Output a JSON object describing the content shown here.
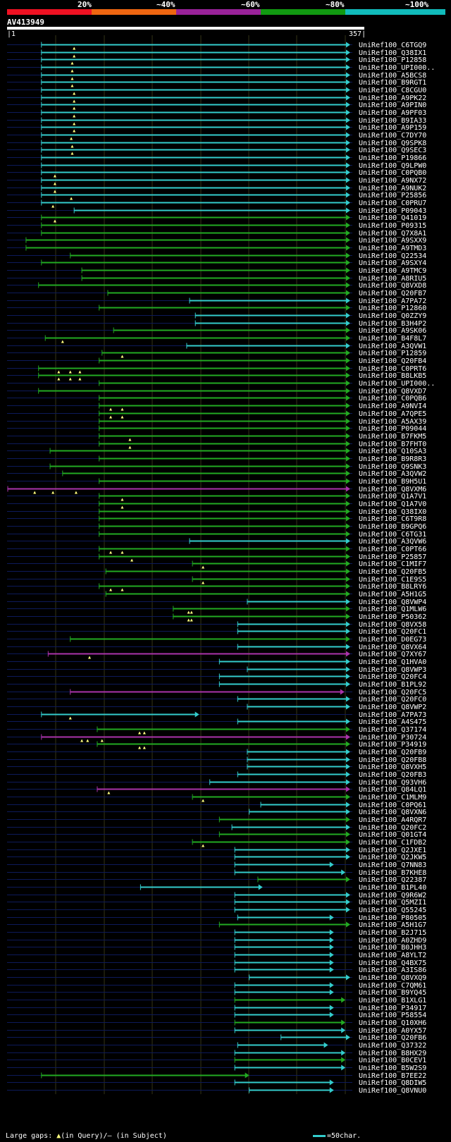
{
  "scale": {
    "labels": [
      "20%",
      "~40%",
      "~60%",
      "~80%",
      "~100%"
    ],
    "colors": [
      "#ee1122",
      "#ee6611",
      "#992299",
      "#119911",
      "#11bbbb"
    ]
  },
  "query": {
    "name": "AV413949",
    "start": "1",
    "end": "357"
  },
  "footer": {
    "gaps_label": "Large gaps:",
    "query_marker": "▲",
    "query_text": "(in Query)/",
    "subject_marker": "–",
    "subject_text": "(in Subject)",
    "legend_text": "=50char."
  },
  "chart_data": {
    "type": "alignment",
    "title": "AV413949",
    "query_length": 357,
    "x_range": [
      1,
      357
    ],
    "colors": {
      "c": "#33cccc",
      "g": "#22aa22",
      "m": "#aa33aa"
    },
    "hits": [
      {
        "label": "UniRef100_C6TGQ9",
        "s": 36,
        "e": 357,
        "c": "c",
        "m": [
          70
        ]
      },
      {
        "label": "UniRef100_Q38IX1",
        "s": 36,
        "e": 357,
        "c": "c",
        "m": [
          70
        ]
      },
      {
        "label": "UniRef100_P12858",
        "s": 36,
        "e": 357,
        "c": "c",
        "m": [
          68
        ]
      },
      {
        "label": "UniRef100_UPI000..",
        "s": 36,
        "e": 357,
        "c": "c",
        "m": [
          68
        ]
      },
      {
        "label": "UniRef100_A5BCS8",
        "s": 36,
        "e": 357,
        "c": "c",
        "m": [
          68
        ]
      },
      {
        "label": "UniRef100_B9RGT1",
        "s": 36,
        "e": 357,
        "c": "c",
        "m": [
          68
        ]
      },
      {
        "label": "UniRef100_C8CGU0",
        "s": 36,
        "e": 357,
        "c": "c",
        "m": [
          70
        ]
      },
      {
        "label": "UniRef100_A9PK22",
        "s": 36,
        "e": 357,
        "c": "c",
        "m": [
          70
        ]
      },
      {
        "label": "UniRef100_A9PIN0",
        "s": 36,
        "e": 357,
        "c": "c",
        "m": [
          70
        ]
      },
      {
        "label": "UniRef100_A9PF03",
        "s": 36,
        "e": 357,
        "c": "c",
        "m": [
          70
        ]
      },
      {
        "label": "UniRef100_B9IA33",
        "s": 36,
        "e": 357,
        "c": "c",
        "m": [
          70
        ]
      },
      {
        "label": "UniRef100_A9P159",
        "s": 36,
        "e": 357,
        "c": "c",
        "m": [
          70
        ]
      },
      {
        "label": "UniRef100_C7DY70",
        "s": 36,
        "e": 357,
        "c": "c",
        "m": [
          67
        ]
      },
      {
        "label": "UniRef100_Q9SPK8",
        "s": 36,
        "e": 357,
        "c": "c",
        "m": [
          68
        ]
      },
      {
        "label": "UniRef100_Q9SEC3",
        "s": 36,
        "e": 357,
        "c": "c",
        "m": [
          68
        ]
      },
      {
        "label": "UniRef100_P19866",
        "s": 36,
        "e": 357,
        "c": "c",
        "m": []
      },
      {
        "label": "UniRef100_Q9LPW0",
        "s": 36,
        "e": 357,
        "c": "c",
        "m": []
      },
      {
        "label": "UniRef100_C0PQB0",
        "s": 36,
        "e": 357,
        "c": "c",
        "m": [
          50
        ]
      },
      {
        "label": "UniRef100_A9NX72",
        "s": 36,
        "e": 357,
        "c": "c",
        "m": [
          50
        ]
      },
      {
        "label": "UniRef100_A9NUK2",
        "s": 36,
        "e": 357,
        "c": "c",
        "m": [
          50
        ]
      },
      {
        "label": "UniRef100_P25856",
        "s": 36,
        "e": 357,
        "c": "c",
        "m": [
          67
        ]
      },
      {
        "label": "UniRef100_C0PRU7",
        "s": 36,
        "e": 357,
        "c": "c",
        "m": [
          48
        ]
      },
      {
        "label": "UniRef100_P09043",
        "s": 70,
        "e": 357,
        "c": "c",
        "m": []
      },
      {
        "label": "UniRef100_Q41019",
        "s": 36,
        "e": 357,
        "c": "g",
        "m": [
          50
        ]
      },
      {
        "label": "UniRef100_P09315",
        "s": 36,
        "e": 357,
        "c": "g",
        "m": []
      },
      {
        "label": "UniRef100_Q7X8A1",
        "s": 36,
        "e": 357,
        "c": "g",
        "m": []
      },
      {
        "label": "UniRef100_A9SXX9",
        "s": 20,
        "e": 357,
        "c": "g",
        "m": []
      },
      {
        "label": "UniRef100_A9TMD3",
        "s": 20,
        "e": 357,
        "c": "g",
        "m": []
      },
      {
        "label": "UniRef100_Q22534",
        "s": 66,
        "e": 357,
        "c": "g",
        "m": []
      },
      {
        "label": "UniRef100_A9SXY4",
        "s": 36,
        "e": 357,
        "c": "g",
        "m": []
      },
      {
        "label": "UniRef100_A9TMC9",
        "s": 78,
        "e": 357,
        "c": "g",
        "m": []
      },
      {
        "label": "UniRef100_A8RIU5",
        "s": 78,
        "e": 357,
        "c": "g",
        "m": []
      },
      {
        "label": "UniRef100_Q8VXD8",
        "s": 33,
        "e": 357,
        "c": "g",
        "m": []
      },
      {
        "label": "UniRef100_Q20FB7",
        "s": 105,
        "e": 357,
        "c": "g",
        "m": []
      },
      {
        "label": "UniRef100_A7PA72",
        "s": 190,
        "e": 357,
        "c": "c",
        "m": []
      },
      {
        "label": "UniRef100_P12860",
        "s": 96,
        "e": 357,
        "c": "g",
        "m": []
      },
      {
        "label": "UniRef100_Q0ZZY9",
        "s": 196,
        "e": 357,
        "c": "c",
        "m": []
      },
      {
        "label": "UniRef100_B3H4P2",
        "s": 196,
        "e": 357,
        "c": "c",
        "m": []
      },
      {
        "label": "UniRef100_A9SK06",
        "s": 111,
        "e": 357,
        "c": "g",
        "m": []
      },
      {
        "label": "UniRef100_B4F8L7",
        "s": 40,
        "e": 357,
        "c": "g",
        "m": [
          58
        ]
      },
      {
        "label": "UniRef100_A3QVW1",
        "s": 187,
        "e": 357,
        "c": "c",
        "m": []
      },
      {
        "label": "UniRef100_P12859",
        "s": 99,
        "e": 357,
        "c": "g",
        "m": [
          120
        ]
      },
      {
        "label": "UniRef100_Q20FB4",
        "s": 96,
        "e": 357,
        "c": "g",
        "m": []
      },
      {
        "label": "UniRef100_C0PRT6",
        "s": 33,
        "e": 357,
        "c": "g",
        "m": [
          54,
          66,
          76
        ]
      },
      {
        "label": "UniRef100_B8LKB5",
        "s": 33,
        "e": 357,
        "c": "g",
        "m": [
          54,
          66,
          76
        ]
      },
      {
        "label": "UniRef100_UPI000..",
        "s": 96,
        "e": 357,
        "c": "g",
        "m": []
      },
      {
        "label": "UniRef100_Q8VXD7",
        "s": 33,
        "e": 357,
        "c": "g",
        "m": []
      },
      {
        "label": "UniRef100_C0PQB6",
        "s": 96,
        "e": 357,
        "c": "g",
        "m": []
      },
      {
        "label": "UniRef100_A9NVI4",
        "s": 96,
        "e": 357,
        "c": "g",
        "m": [
          108,
          120
        ]
      },
      {
        "label": "UniRef100_A7QPE5",
        "s": 96,
        "e": 357,
        "c": "g",
        "m": [
          108,
          120
        ]
      },
      {
        "label": "UniRef100_A5AX39",
        "s": 96,
        "e": 357,
        "c": "g",
        "m": []
      },
      {
        "label": "UniRef100_P09044",
        "s": 96,
        "e": 357,
        "c": "g",
        "m": []
      },
      {
        "label": "UniRef100_B7FKM5",
        "s": 96,
        "e": 357,
        "c": "g",
        "m": [
          128
        ]
      },
      {
        "label": "UniRef100_B7FHT0",
        "s": 96,
        "e": 357,
        "c": "g",
        "m": [
          128
        ]
      },
      {
        "label": "UniRef100_Q10SA3",
        "s": 45,
        "e": 357,
        "c": "g",
        "m": []
      },
      {
        "label": "UniRef100_B9R8R3",
        "s": 96,
        "e": 357,
        "c": "g",
        "m": []
      },
      {
        "label": "UniRef100_Q9SNK3",
        "s": 45,
        "e": 357,
        "c": "g",
        "m": []
      },
      {
        "label": "UniRef100_A3QVW2",
        "s": 58,
        "e": 357,
        "c": "g",
        "m": []
      },
      {
        "label": "UniRef100_B9H5U1",
        "s": 96,
        "e": 357,
        "c": "g",
        "m": []
      },
      {
        "label": "UniRef100_Q8VXM6",
        "s": 1,
        "e": 357,
        "c": "m",
        "m": [
          29,
          48,
          72
        ]
      },
      {
        "label": "UniRef100_Q1A7V1",
        "s": 96,
        "e": 357,
        "c": "g",
        "m": [
          120
        ]
      },
      {
        "label": "UniRef100_Q1A7V0",
        "s": 96,
        "e": 357,
        "c": "g",
        "m": [
          120
        ]
      },
      {
        "label": "UniRef100_Q38IX0",
        "s": 96,
        "e": 357,
        "c": "g",
        "m": []
      },
      {
        "label": "UniRef100_C6T9R8",
        "s": 96,
        "e": 357,
        "c": "g",
        "m": []
      },
      {
        "label": "UniRef100_B9GPQ6",
        "s": 96,
        "e": 357,
        "c": "g",
        "m": []
      },
      {
        "label": "UniRef100_C6TG31",
        "s": 96,
        "e": 357,
        "c": "g",
        "m": []
      },
      {
        "label": "UniRef100_A3QVW6",
        "s": 190,
        "e": 357,
        "c": "c",
        "m": []
      },
      {
        "label": "UniRef100_C0PT66",
        "s": 96,
        "e": 357,
        "c": "g",
        "m": [
          108,
          120
        ]
      },
      {
        "label": "UniRef100_P25857",
        "s": 96,
        "e": 357,
        "c": "g",
        "m": [
          130
        ]
      },
      {
        "label": "UniRef100_C1MIF7",
        "s": 193,
        "e": 357,
        "c": "g",
        "m": [
          204
        ]
      },
      {
        "label": "UniRef100_Q20FB5",
        "s": 103,
        "e": 357,
        "c": "g",
        "m": []
      },
      {
        "label": "UniRef100_C1E9S5",
        "s": 193,
        "e": 357,
        "c": "g",
        "m": [
          204
        ]
      },
      {
        "label": "UniRef100_B8LRY6",
        "s": 96,
        "e": 357,
        "c": "g",
        "m": [
          108,
          120
        ]
      },
      {
        "label": "UniRef100_A5H1G5",
        "s": 103,
        "e": 357,
        "c": "g",
        "m": []
      },
      {
        "label": "UniRef100_Q8VWP4",
        "s": 250,
        "e": 357,
        "c": "c",
        "m": []
      },
      {
        "label": "UniRef100_Q1MLW6",
        "s": 173,
        "e": 357,
        "c": "g",
        "m": [
          189,
          192
        ]
      },
      {
        "label": "UniRef100_P50362",
        "s": 173,
        "e": 357,
        "c": "g",
        "m": [
          189,
          192
        ]
      },
      {
        "label": "UniRef100_Q8VX58",
        "s": 240,
        "e": 357,
        "c": "c",
        "m": []
      },
      {
        "label": "UniRef100_Q20FC1",
        "s": 240,
        "e": 357,
        "c": "c",
        "m": []
      },
      {
        "label": "UniRef100_D0EG73",
        "s": 66,
        "e": 357,
        "c": "g",
        "m": []
      },
      {
        "label": "UniRef100_Q8VX64",
        "s": 240,
        "e": 357,
        "c": "c",
        "m": []
      },
      {
        "label": "UniRef100_Q7XY67",
        "s": 43,
        "e": 357,
        "c": "m",
        "m": [
          86
        ]
      },
      {
        "label": "UniRef100_Q1HVA0",
        "s": 221,
        "e": 357,
        "c": "c",
        "m": []
      },
      {
        "label": "UniRef100_Q8VWP3",
        "s": 250,
        "e": 357,
        "c": "c",
        "m": []
      },
      {
        "label": "UniRef100_Q20FC4",
        "s": 221,
        "e": 357,
        "c": "c",
        "m": []
      },
      {
        "label": "UniRef100_B1PL92",
        "s": 221,
        "e": 357,
        "c": "c",
        "m": []
      },
      {
        "label": "UniRef100_Q20FC5",
        "s": 66,
        "e": 351,
        "c": "m",
        "m": []
      },
      {
        "label": "UniRef100_Q20FC0",
        "s": 240,
        "e": 357,
        "c": "c",
        "m": []
      },
      {
        "label": "UniRef100_Q8VWP2",
        "s": 250,
        "e": 357,
        "c": "c",
        "m": []
      },
      {
        "label": "UniRef100_A7PA73",
        "s": 36,
        "e": 200,
        "c": "c",
        "m": [
          66
        ]
      },
      {
        "label": "UniRef100_A4S475",
        "s": 240,
        "e": 357,
        "c": "c",
        "m": []
      },
      {
        "label": "UniRef100_Q37174",
        "s": 94,
        "e": 357,
        "c": "g",
        "m": [
          138,
          143
        ]
      },
      {
        "label": "UniRef100_P30724",
        "s": 36,
        "e": 357,
        "c": "m",
        "m": [
          78,
          84,
          99
        ]
      },
      {
        "label": "UniRef100_P34919",
        "s": 94,
        "e": 357,
        "c": "g",
        "m": [
          138,
          143
        ]
      },
      {
        "label": "UniRef100_Q20FB9",
        "s": 250,
        "e": 357,
        "c": "c",
        "m": []
      },
      {
        "label": "UniRef100_Q20FB8",
        "s": 250,
        "e": 357,
        "c": "c",
        "m": []
      },
      {
        "label": "UniRef100_Q8VXH5",
        "s": 250,
        "e": 357,
        "c": "c",
        "m": []
      },
      {
        "label": "UniRef100_Q20FB3",
        "s": 240,
        "e": 357,
        "c": "c",
        "m": []
      },
      {
        "label": "UniRef100_Q93VH6",
        "s": 211,
        "e": 357,
        "c": "c",
        "m": []
      },
      {
        "label": "UniRef100_Q84LQ1",
        "s": 94,
        "e": 357,
        "c": "m",
        "m": [
          106
        ]
      },
      {
        "label": "UniRef100_C1MLM9",
        "s": 193,
        "e": 357,
        "c": "g",
        "m": [
          204
        ]
      },
      {
        "label": "UniRef100_C0PQ61",
        "s": 264,
        "e": 357,
        "c": "c",
        "m": []
      },
      {
        "label": "UniRef100_Q8VXN6",
        "s": 252,
        "e": 357,
        "c": "c",
        "m": []
      },
      {
        "label": "UniRef100_A4RQR7",
        "s": 221,
        "e": 357,
        "c": "g",
        "m": []
      },
      {
        "label": "UniRef100_Q20FC2",
        "s": 234,
        "e": 357,
        "c": "c",
        "m": []
      },
      {
        "label": "UniRef100_Q01GT4",
        "s": 221,
        "e": 357,
        "c": "g",
        "m": []
      },
      {
        "label": "UniRef100_C1FDB2",
        "s": 193,
        "e": 357,
        "c": "g",
        "m": [
          204
        ]
      },
      {
        "label": "UniRef100_Q2JXE1",
        "s": 237,
        "e": 357,
        "c": "c",
        "m": []
      },
      {
        "label": "UniRef100_Q2JKW5",
        "s": 237,
        "e": 357,
        "c": "c",
        "m": []
      },
      {
        "label": "UniRef100_Q7NN83",
        "s": 237,
        "e": 340,
        "c": "c",
        "m": []
      },
      {
        "label": "UniRef100_B7KHE8",
        "s": 237,
        "e": 352,
        "c": "c",
        "m": []
      },
      {
        "label": "UniRef100_Q22387",
        "s": 261,
        "e": 357,
        "c": "g",
        "m": []
      },
      {
        "label": "UniRef100_B1PL40",
        "s": 139,
        "e": 266,
        "c": "c",
        "m": []
      },
      {
        "label": "UniRef100_Q9R6W2",
        "s": 237,
        "e": 357,
        "c": "c",
        "m": []
      },
      {
        "label": "UniRef100_Q5MZI1",
        "s": 237,
        "e": 357,
        "c": "c",
        "m": []
      },
      {
        "label": "UniRef100_Q55245",
        "s": 237,
        "e": 357,
        "c": "c",
        "m": []
      },
      {
        "label": "UniRef100_P80505",
        "s": 240,
        "e": 340,
        "c": "c",
        "m": []
      },
      {
        "label": "UniRef100_A5H1G7",
        "s": 221,
        "e": 357,
        "c": "g",
        "m": []
      },
      {
        "label": "UniRef100_B2J715",
        "s": 237,
        "e": 340,
        "c": "c",
        "m": []
      },
      {
        "label": "UniRef100_A0ZHD9",
        "s": 237,
        "e": 340,
        "c": "c",
        "m": []
      },
      {
        "label": "UniRef100_B0JHH3",
        "s": 237,
        "e": 340,
        "c": "c",
        "m": []
      },
      {
        "label": "UniRef100_A8YLT2",
        "s": 237,
        "e": 340,
        "c": "c",
        "m": []
      },
      {
        "label": "UniRef100_Q4BX75",
        "s": 237,
        "e": 340,
        "c": "c",
        "m": []
      },
      {
        "label": "UniRef100_A3IS86",
        "s": 237,
        "e": 340,
        "c": "c",
        "m": []
      },
      {
        "label": "UniRef100_Q8VXQ9",
        "s": 252,
        "e": 357,
        "c": "c",
        "m": []
      },
      {
        "label": "UniRef100_C7QM61",
        "s": 237,
        "e": 340,
        "c": "c",
        "m": []
      },
      {
        "label": "UniRef100_B9YQ45",
        "s": 237,
        "e": 340,
        "c": "c",
        "m": []
      },
      {
        "label": "UniRef100_B1XLG1",
        "s": 237,
        "e": 352,
        "c": "g",
        "m": []
      },
      {
        "label": "UniRef100_P34917",
        "s": 237,
        "e": 340,
        "c": "c",
        "m": []
      },
      {
        "label": "UniRef100_P58554",
        "s": 237,
        "e": 340,
        "c": "c",
        "m": []
      },
      {
        "label": "UniRef100_Q10XH6",
        "s": 237,
        "e": 352,
        "c": "g",
        "m": []
      },
      {
        "label": "UniRef100_A0YX57",
        "s": 237,
        "e": 352,
        "c": "c",
        "m": []
      },
      {
        "label": "UniRef100_Q20FB6",
        "s": 285,
        "e": 357,
        "c": "c",
        "m": []
      },
      {
        "label": "UniRef100_Q37322",
        "s": 240,
        "e": 334,
        "c": "c",
        "m": []
      },
      {
        "label": "UniRef100_B8HX29",
        "s": 237,
        "e": 352,
        "c": "c",
        "m": []
      },
      {
        "label": "UniRef100_B0CEV1",
        "s": 237,
        "e": 352,
        "c": "g",
        "m": []
      },
      {
        "label": "UniRef100_B5W2S9",
        "s": 237,
        "e": 352,
        "c": "c",
        "m": []
      },
      {
        "label": "UniRef100_B7EE22",
        "s": 36,
        "e": 252,
        "c": "g",
        "m": []
      },
      {
        "label": "UniRef100_Q8DIW5",
        "s": 237,
        "e": 340,
        "c": "c",
        "m": []
      },
      {
        "label": "UniRef100_Q8VNU0",
        "s": 252,
        "e": 340,
        "c": "c",
        "m": []
      }
    ]
  }
}
